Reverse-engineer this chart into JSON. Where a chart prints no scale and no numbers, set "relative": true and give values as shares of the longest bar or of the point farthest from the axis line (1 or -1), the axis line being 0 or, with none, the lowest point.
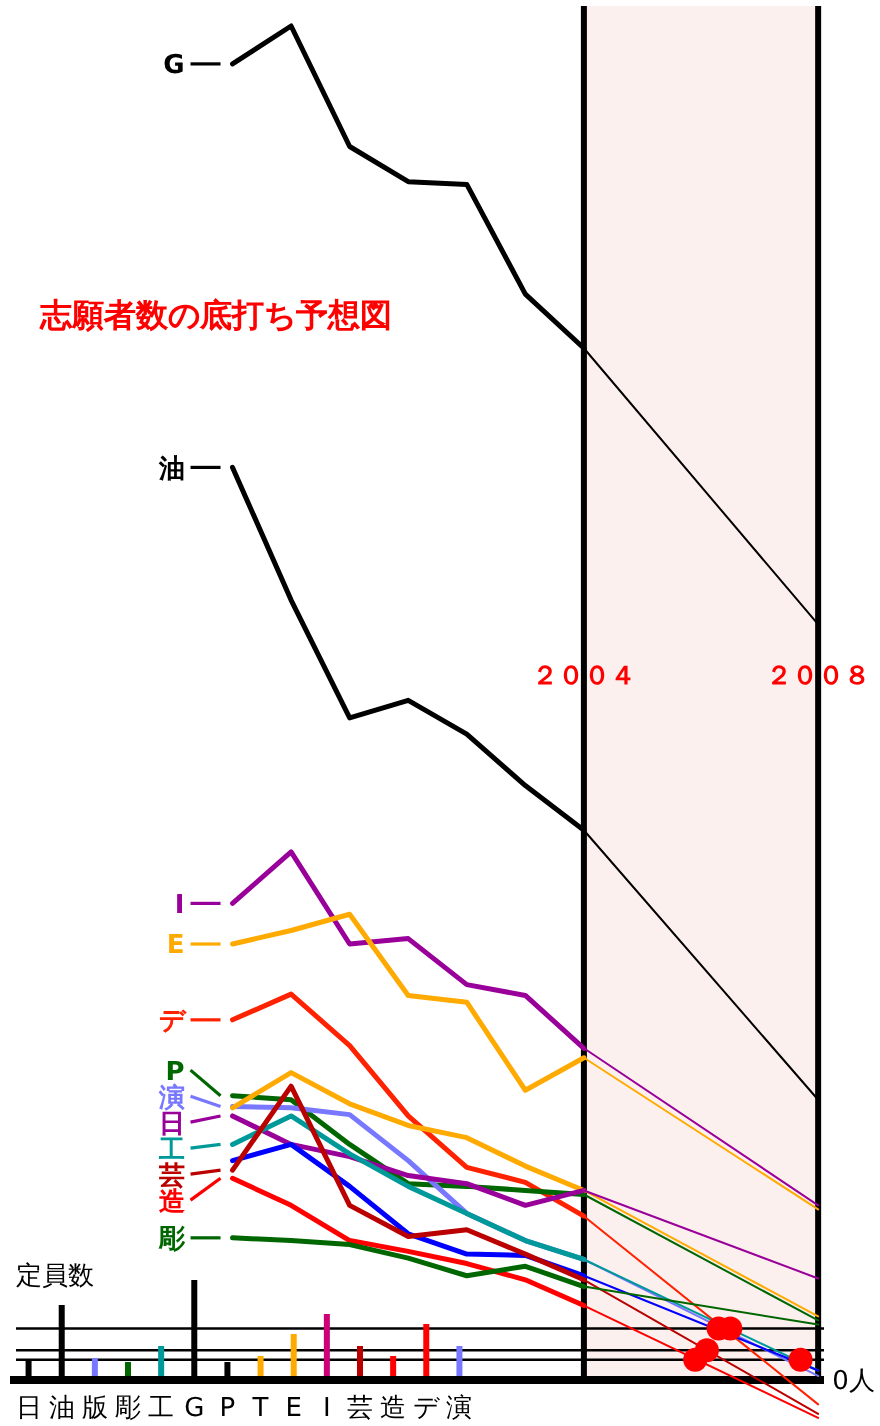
{
  "chart_data": [
    {
      "type": "line",
      "title": "志願者数の底打ち予想図",
      "x": [
        1998,
        1999,
        2000,
        2001,
        2002,
        2003,
        2004
      ],
      "xlim": [
        1994.2,
        2008.1
      ],
      "xticks": [
        {
          "value": 2004,
          "label": "２００４"
        },
        {
          "value": 2008,
          "label": "２００８"
        }
      ],
      "relative": true,
      "legend": "left",
      "series": [
        {
          "name": "G",
          "color": "#000000",
          "values": [
            0.972,
            1.0,
            0.911,
            0.885,
            0.883,
            0.802,
            0.762
          ]
        },
        {
          "name": "油",
          "color": "#000000",
          "values": [
            0.674,
            0.576,
            0.489,
            0.502,
            0.477,
            0.439,
            0.406
          ]
        },
        {
          "name": "I",
          "color": "#990099",
          "values": [
            0.352,
            0.39,
            0.322,
            0.326,
            0.292,
            0.284,
            0.245
          ]
        },
        {
          "name": "E",
          "color": "#ffaa00",
          "values": [
            0.322,
            0.332,
            0.344,
            0.284,
            0.279,
            0.214,
            0.238
          ]
        },
        {
          "name": "デ",
          "color": "#ff2200",
          "values": [
            0.266,
            0.285,
            0.247,
            0.195,
            0.157,
            0.146,
            0.121
          ]
        },
        {
          "name": "P",
          "color": "#006600",
          "values": [
            0.21,
            0.207,
            0.174,
            0.145,
            0.143,
            0.14,
            0.137
          ]
        },
        {
          "name": "演",
          "color": "#7777ff",
          "values": [
            0.202,
            0.201,
            0.196,
            0.162,
            0.123,
            0.103,
            0.089
          ]
        },
        {
          "color": "#ffaa00",
          "values": [
            0.201,
            0.227,
            0.204,
            0.188,
            0.179,
            0.158,
            0.14
          ]
        },
        {
          "name": "日",
          "color": "#990099",
          "values": [
            0.195,
            0.174,
            0.165,
            0.151,
            0.145,
            0.129,
            0.14
          ]
        },
        {
          "name": "工",
          "color": "#009999",
          "values": [
            0.174,
            0.195,
            0.167,
            0.143,
            0.123,
            0.103,
            0.089
          ]
        },
        {
          "color": "#0000ff",
          "values": [
            0.162,
            0.174,
            0.143,
            0.108,
            0.093,
            0.092,
            0.077
          ]
        },
        {
          "name": "芸",
          "color": "#bb0000",
          "values": [
            0.155,
            0.217,
            0.129,
            0.106,
            0.111,
            0.093,
            0.074
          ]
        },
        {
          "name": "造",
          "color": "#ff0000",
          "values": [
            0.149,
            0.129,
            0.103,
            0.095,
            0.086,
            0.074,
            0.055
          ]
        },
        {
          "name": "彫",
          "color": "#006600",
          "values": [
            0.105,
            0.103,
            0.1,
            0.09,
            0.077,
            0.084,
            0.069
          ]
        },
        {
          "color": "#000000",
          "x": [
            2004,
            2008
          ],
          "values": [
            0.762,
            0.558
          ]
        },
        {
          "color": "#000000",
          "x": [
            2004,
            2008
          ],
          "values": [
            0.406,
            0.207
          ]
        },
        {
          "color": "#990099",
          "x": [
            2004,
            2008
          ],
          "values": [
            0.245,
            0.129
          ]
        },
        {
          "color": "#ffaa00",
          "x": [
            2004,
            2008
          ],
          "values": [
            0.238,
            0.126
          ]
        },
        {
          "color": "#ff2200",
          "x": [
            2004,
            2008
          ],
          "values": [
            0.121,
            -0.018
          ]
        },
        {
          "color": "#006600",
          "x": [
            2004,
            2008
          ],
          "values": [
            0.137,
            0.044
          ]
        },
        {
          "color": "#7777ff",
          "x": [
            2004,
            2008
          ],
          "values": [
            0.089,
            0.003
          ]
        },
        {
          "color": "#ffaa00",
          "x": [
            2004,
            2008
          ],
          "values": [
            0.14,
            0.047
          ]
        },
        {
          "color": "#990099",
          "x": [
            2004,
            2008
          ],
          "values": [
            0.14,
            0.075
          ]
        },
        {
          "color": "#009999",
          "x": [
            2004,
            2008
          ],
          "values": [
            0.089,
            0.007
          ]
        },
        {
          "color": "#0000ff",
          "x": [
            2004,
            2008
          ],
          "values": [
            0.077,
            0.007
          ]
        },
        {
          "color": "#bb0000",
          "x": [
            2004,
            2008
          ],
          "values": [
            0.074,
            -0.025
          ]
        },
        {
          "color": "#ff0000",
          "x": [
            2004,
            2008
          ],
          "values": [
            0.055,
            -0.028
          ]
        },
        {
          "color": "#006600",
          "x": [
            2004,
            2008
          ],
          "values": [
            0.069,
            0.041
          ]
        },
        {
          "type": "scatter",
          "color": "#ff0000",
          "x": [
            2006.3,
            2006.5,
            2006.1,
            2005.9,
            2007.7
          ],
          "values": [
            0.038,
            0.038,
            0.022,
            0.015,
            0.015
          ]
        }
      ],
      "bands": [
        {
          "axis": "x",
          "from": 2004,
          "to": 2008,
          "color": "#fcf0ee"
        }
      ],
      "ref_lines": [
        {
          "axis": "x",
          "value": 2004,
          "color": "#000000"
        },
        {
          "axis": "x",
          "value": 2008,
          "color": "#000000"
        },
        {
          "axis": "y",
          "value": 0.038,
          "color": "#000000"
        },
        {
          "axis": "y",
          "value": 0.022,
          "color": "#000000"
        },
        {
          "axis": "y",
          "value": 0.015,
          "color": "#000000"
        }
      ],
      "annotations": [
        {
          "text": "0人",
          "x": 2008,
          "y": 0
        }
      ]
    },
    {
      "type": "bar",
      "title": "定員数",
      "categories": [
        "日",
        "油",
        "版",
        "彫",
        "工",
        "G",
        "P",
        "T",
        "E",
        "I",
        "芸",
        "造",
        "デ",
        "演"
      ],
      "values": [
        0.2,
        0.75,
        0.22,
        0.18,
        0.34,
        1.0,
        0.18,
        0.24,
        0.46,
        0.66,
        0.34,
        0.24,
        0.56,
        0.34
      ],
      "colors": [
        "#000000",
        "#000000",
        "#7777ff",
        "#006600",
        "#009999",
        "#000000",
        "#000000",
        "#ffaa00",
        "#ffaa00",
        "#cc0077",
        "#bb0000",
        "#ff0000",
        "#ff0000",
        "#7777ff"
      ],
      "relative": true
    }
  ]
}
